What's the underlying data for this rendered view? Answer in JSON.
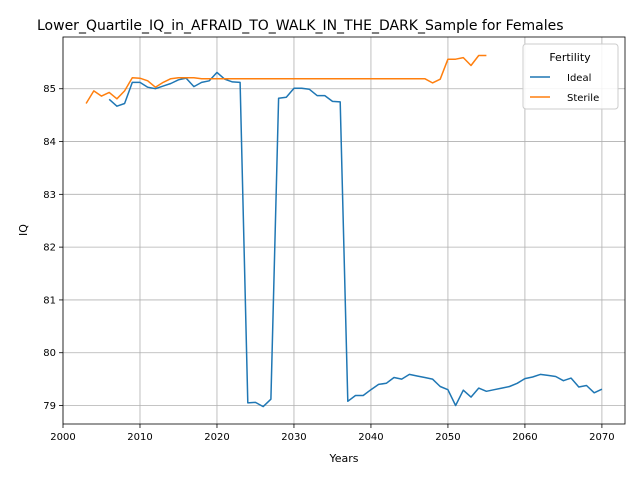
{
  "chart_data": {
    "type": "line",
    "title": "Lower_Quartile_IQ_in_AFRAID_TO_WALK_IN_THE_DARK_Sample for Females",
    "xlabel": "Years",
    "ylabel": "IQ",
    "xlim": [
      2000,
      2073
    ],
    "ylim": [
      78.65,
      85.98
    ],
    "xticks": [
      2000,
      2010,
      2020,
      2030,
      2040,
      2050,
      2060,
      2070
    ],
    "yticks": [
      79,
      80,
      81,
      82,
      83,
      84,
      85
    ],
    "grid": true,
    "legend": {
      "title": "Fertility",
      "placement": "top-right"
    },
    "series": [
      {
        "name": "Ideal",
        "color": "#1f77b4",
        "x": [
          2006,
          2007,
          2008,
          2009,
          2010,
          2011,
          2012,
          2013,
          2014,
          2015,
          2016,
          2017,
          2018,
          2019,
          2020,
          2021,
          2022,
          2023,
          2024,
          2025,
          2026,
          2027,
          2028,
          2029,
          2030,
          2031,
          2032,
          2033,
          2034,
          2035,
          2036,
          2037,
          2038,
          2039,
          2040,
          2041,
          2042,
          2043,
          2044,
          2045,
          2046,
          2047,
          2048,
          2049,
          2050,
          2051,
          2052,
          2053,
          2054,
          2055,
          2056,
          2057,
          2058,
          2059,
          2060,
          2061,
          2062,
          2063,
          2064,
          2065,
          2066,
          2067,
          2068,
          2069,
          2070
        ],
        "y": [
          84.8,
          84.67,
          84.72,
          85.12,
          85.12,
          85.03,
          85.0,
          85.05,
          85.1,
          85.17,
          85.2,
          85.04,
          85.12,
          85.15,
          85.31,
          85.18,
          85.13,
          85.12,
          79.05,
          79.06,
          78.98,
          79.12,
          84.82,
          84.84,
          85.01,
          85.01,
          84.99,
          84.87,
          84.87,
          84.76,
          84.75,
          79.08,
          79.19,
          79.19,
          79.3,
          79.4,
          79.42,
          79.53,
          79.5,
          79.59,
          79.56,
          79.53,
          79.5,
          79.36,
          79.3,
          79.0,
          79.29,
          79.16,
          79.33,
          79.27,
          79.3,
          79.33,
          79.36,
          79.42,
          79.51,
          79.54,
          79.59,
          79.57,
          79.55,
          79.47,
          79.52,
          79.35,
          79.38,
          79.24,
          79.31
        ]
      },
      {
        "name": "Sterile",
        "color": "#ff7f0e",
        "x": [
          2003,
          2004,
          2005,
          2006,
          2007,
          2008,
          2009,
          2010,
          2011,
          2012,
          2013,
          2014,
          2015,
          2016,
          2017,
          2018,
          2019,
          2020,
          2021,
          2022,
          2023,
          2024,
          2025,
          2026,
          2027,
          2028,
          2029,
          2030,
          2031,
          2032,
          2033,
          2034,
          2035,
          2036,
          2037,
          2038,
          2039,
          2040,
          2041,
          2042,
          2043,
          2044,
          2045,
          2046,
          2047,
          2048,
          2049,
          2050,
          2051,
          2052,
          2053,
          2054,
          2055
        ],
        "y": [
          84.72,
          84.96,
          84.86,
          84.93,
          84.81,
          84.96,
          85.21,
          85.2,
          85.15,
          85.03,
          85.12,
          85.19,
          85.21,
          85.21,
          85.21,
          85.19,
          85.19,
          85.19,
          85.19,
          85.19,
          85.19,
          85.19,
          85.19,
          85.19,
          85.19,
          85.19,
          85.19,
          85.19,
          85.19,
          85.19,
          85.19,
          85.19,
          85.19,
          85.19,
          85.19,
          85.19,
          85.19,
          85.19,
          85.19,
          85.19,
          85.19,
          85.19,
          85.19,
          85.19,
          85.19,
          85.11,
          85.18,
          85.56,
          85.56,
          85.59,
          85.44,
          85.63,
          85.63
        ]
      }
    ]
  }
}
